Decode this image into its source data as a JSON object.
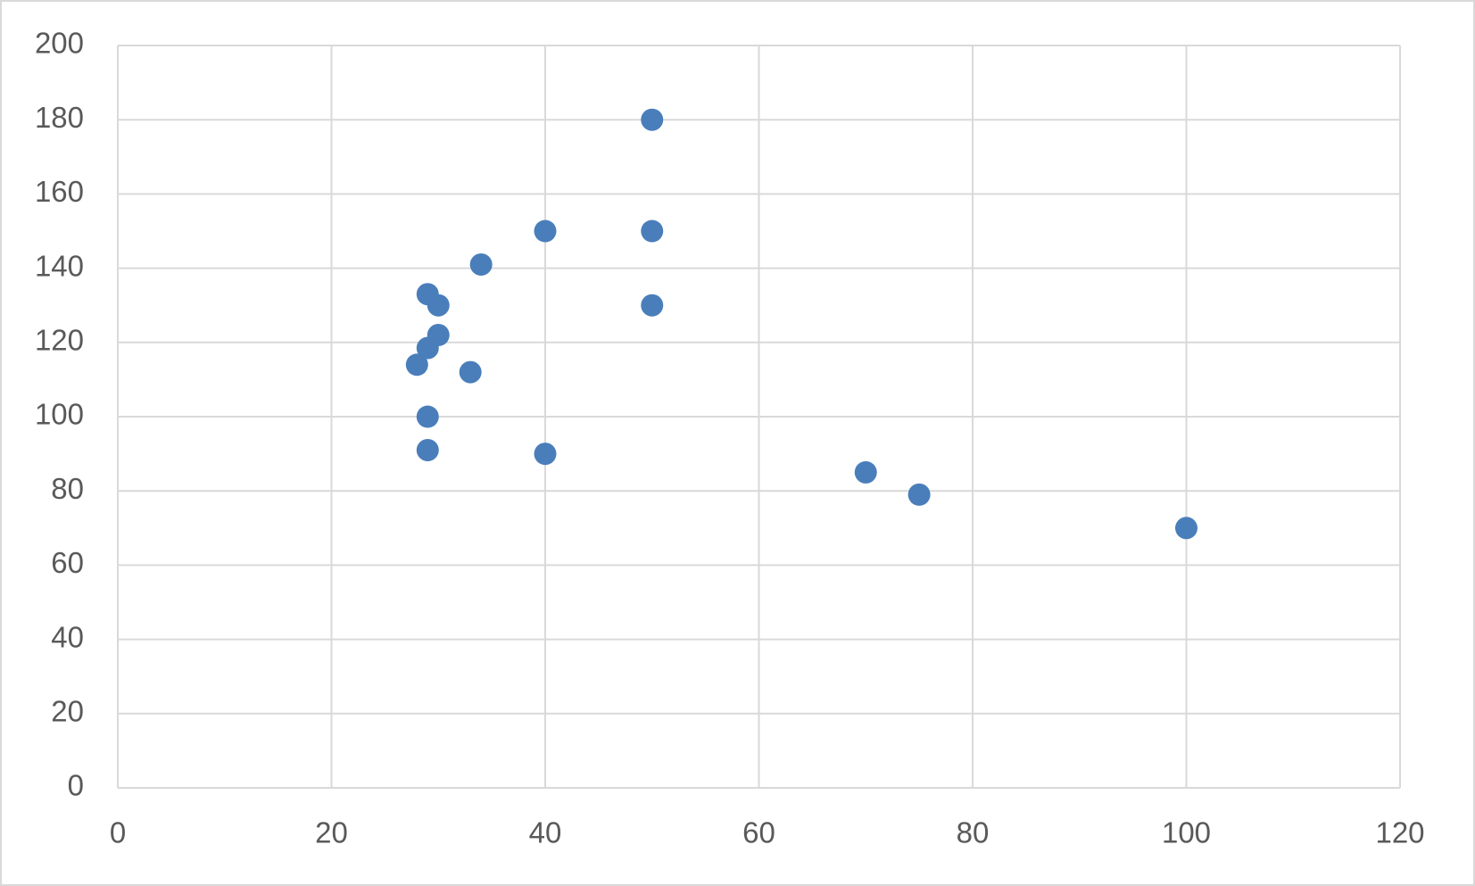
{
  "chart_data": {
    "type": "scatter",
    "x": [
      50,
      40,
      50,
      34,
      29,
      30,
      50,
      30,
      29,
      28,
      33,
      29,
      29,
      40,
      70,
      75,
      100
    ],
    "series": [
      {
        "color": "#4a7ebb",
        "values": [
          180,
          150,
          150,
          141,
          133,
          130,
          130,
          122,
          118.5,
          114,
          112,
          100,
          91,
          90,
          85,
          79,
          70
        ]
      }
    ],
    "xlim": [
      0,
      120
    ],
    "xticks": [
      0,
      20,
      40,
      60,
      80,
      100,
      120
    ],
    "ylim": [
      0,
      200
    ],
    "yticks": [
      0,
      20,
      40,
      60,
      80,
      100,
      120,
      140,
      160,
      180,
      200
    ],
    "grid": true
  }
}
